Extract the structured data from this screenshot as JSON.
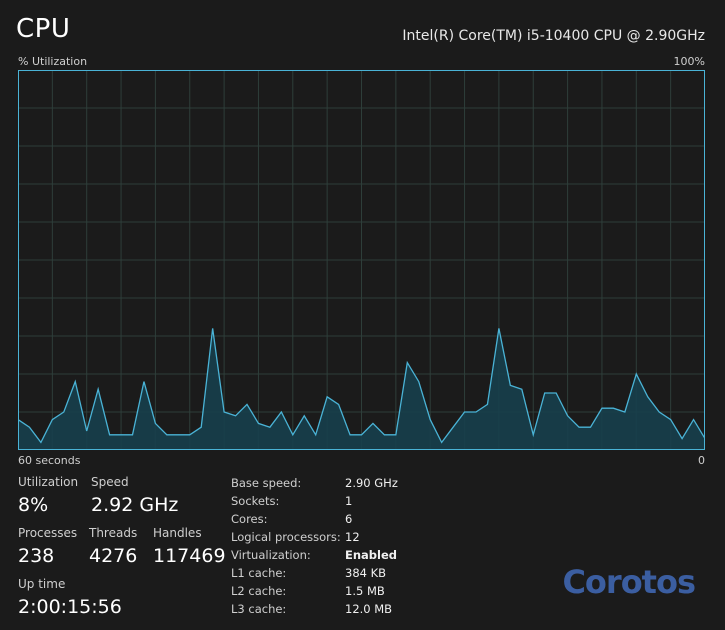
{
  "header": {
    "title": "CPU",
    "cpu_model": "Intel(R) Core(TM) i5-10400 CPU @ 2.90GHz"
  },
  "graph": {
    "y_label": "% Utilization",
    "y_max_label": "100%",
    "x_label": "60 seconds",
    "x_min_label": "0",
    "colors": {
      "line": "#4ab3d6",
      "fill": "#173f4d",
      "grid": "#2e3e3a",
      "border": "#4ab3d6"
    }
  },
  "chart_data": {
    "type": "area",
    "title": "",
    "xlabel": "60 seconds",
    "ylabel": "% Utilization",
    "ylim": [
      0,
      100
    ],
    "xlim": [
      60,
      0
    ],
    "grid": true,
    "x": [
      60,
      59,
      58,
      57,
      56,
      55,
      54,
      53,
      52,
      51,
      50,
      49,
      48,
      47,
      46,
      45,
      44,
      43,
      42,
      41,
      40,
      39,
      38,
      37,
      36,
      35,
      34,
      33,
      32,
      31,
      30,
      29,
      28,
      27,
      26,
      25,
      24,
      23,
      22,
      21,
      20,
      19,
      18,
      17,
      16,
      15,
      14,
      13,
      12,
      11,
      10,
      9,
      8,
      7,
      6,
      5,
      4,
      3,
      2,
      1,
      0
    ],
    "series": [
      {
        "values": [
          8,
          6,
          2,
          8,
          10,
          18,
          5,
          16,
          4,
          4,
          4,
          18,
          7,
          4,
          4,
          4,
          6,
          32,
          10,
          9,
          12,
          7,
          6,
          10,
          4,
          9,
          4,
          14,
          12,
          4,
          4,
          7,
          4,
          4,
          23,
          18,
          8,
          2,
          6,
          10,
          10,
          12,
          32,
          17,
          16,
          4,
          15,
          15,
          9,
          6,
          6,
          11,
          11,
          10,
          20,
          14,
          10,
          8,
          3,
          8,
          3
        ]
      }
    ]
  },
  "stats": {
    "utilization": {
      "label": "Utilization",
      "value": "8%"
    },
    "speed": {
      "label": "Speed",
      "value": "2.92 GHz"
    },
    "processes": {
      "label": "Processes",
      "value": "238"
    },
    "threads": {
      "label": "Threads",
      "value": "4276"
    },
    "handles": {
      "label": "Handles",
      "value": "117469"
    },
    "uptime": {
      "label": "Up time",
      "value": "2:00:15:56"
    }
  },
  "specs": [
    {
      "label": "Base speed:",
      "value": "2.90 GHz",
      "bold": false
    },
    {
      "label": "Sockets:",
      "value": "1",
      "bold": false
    },
    {
      "label": "Cores:",
      "value": "6",
      "bold": false
    },
    {
      "label": "Logical processors:",
      "value": "12",
      "bold": false
    },
    {
      "label": "Virtualization:",
      "value": "Enabled",
      "bold": true
    },
    {
      "label": "L1 cache:",
      "value": "384 KB",
      "bold": false
    },
    {
      "label": "L2 cache:",
      "value": "1.5 MB",
      "bold": false
    },
    {
      "label": "L3 cache:",
      "value": "12.0 MB",
      "bold": false
    }
  ],
  "watermark": {
    "text": "Corotos"
  }
}
